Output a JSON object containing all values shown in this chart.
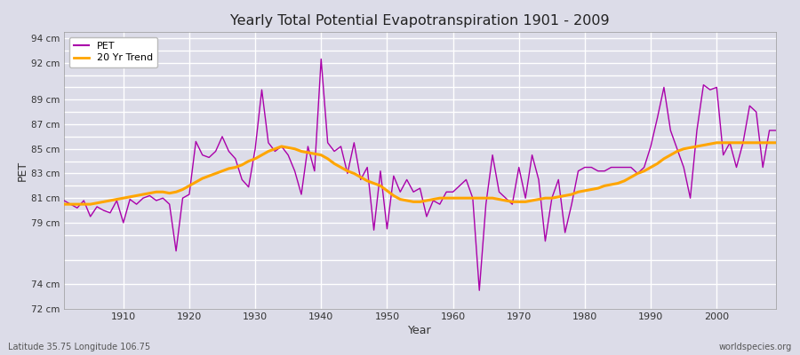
{
  "title": "Yearly Total Potential Evapotranspiration 1901 - 2009",
  "ylabel": "PET",
  "xlabel": "Year",
  "bottom_left_label": "Latitude 35.75 Longitude 106.75",
  "bottom_right_label": "worldspecies.org",
  "pet_color": "#AA00AA",
  "trend_color": "#FFA500",
  "background_color": "#DCDCE8",
  "plot_bg_color": "#DCDCE8",
  "grid_color": "#FFFFFF",
  "ylim": [
    72,
    94.5
  ],
  "xlim": [
    1901,
    2009
  ],
  "years": [
    1901,
    1902,
    1903,
    1904,
    1905,
    1906,
    1907,
    1908,
    1909,
    1910,
    1911,
    1912,
    1913,
    1914,
    1915,
    1916,
    1917,
    1918,
    1919,
    1920,
    1921,
    1922,
    1923,
    1924,
    1925,
    1926,
    1927,
    1928,
    1929,
    1930,
    1931,
    1932,
    1933,
    1934,
    1935,
    1936,
    1937,
    1938,
    1939,
    1940,
    1941,
    1942,
    1943,
    1944,
    1945,
    1946,
    1947,
    1948,
    1949,
    1950,
    1951,
    1952,
    1953,
    1954,
    1955,
    1956,
    1957,
    1958,
    1959,
    1960,
    1961,
    1962,
    1963,
    1964,
    1965,
    1966,
    1967,
    1968,
    1969,
    1970,
    1971,
    1972,
    1973,
    1974,
    1975,
    1976,
    1977,
    1978,
    1979,
    1980,
    1981,
    1982,
    1983,
    1984,
    1985,
    1986,
    1987,
    1988,
    1989,
    1990,
    1991,
    1992,
    1993,
    1994,
    1995,
    1996,
    1997,
    1998,
    1999,
    2000,
    2001,
    2002,
    2003,
    2004,
    2005,
    2006,
    2007,
    2008,
    2009
  ],
  "pet_values": [
    80.8,
    80.5,
    80.2,
    80.8,
    79.5,
    80.3,
    80.0,
    79.8,
    80.8,
    79.0,
    80.9,
    80.5,
    81.0,
    81.2,
    80.8,
    81.0,
    80.5,
    76.7,
    81.0,
    81.3,
    85.6,
    84.5,
    84.3,
    84.8,
    86.0,
    84.8,
    84.2,
    82.5,
    81.9,
    85.0,
    89.8,
    85.5,
    84.8,
    85.2,
    84.5,
    83.2,
    81.3,
    85.2,
    83.2,
    92.3,
    85.5,
    84.8,
    85.2,
    83.0,
    85.5,
    82.5,
    83.5,
    78.4,
    83.2,
    78.5,
    82.8,
    81.5,
    82.5,
    81.5,
    81.8,
    79.5,
    80.8,
    80.5,
    81.5,
    81.5,
    82.0,
    82.5,
    81.0,
    73.5,
    80.5,
    84.5,
    81.5,
    81.0,
    80.5,
    83.5,
    81.0,
    84.5,
    82.5,
    77.5,
    81.0,
    82.5,
    78.2,
    80.5,
    83.2,
    83.5,
    83.5,
    83.2,
    83.2,
    83.5,
    83.5,
    83.5,
    83.5,
    83.0,
    83.5,
    85.2,
    87.5,
    90.0,
    86.5,
    85.0,
    83.5,
    81.0,
    86.5,
    90.2,
    89.8,
    90.0,
    84.5,
    85.5,
    83.5,
    85.5,
    88.5,
    88.0,
    83.5,
    86.5,
    86.5
  ],
  "trend_values": [
    80.5,
    80.5,
    80.5,
    80.5,
    80.5,
    80.6,
    80.7,
    80.8,
    80.9,
    81.0,
    81.1,
    81.2,
    81.3,
    81.4,
    81.5,
    81.5,
    81.4,
    81.5,
    81.7,
    82.0,
    82.3,
    82.6,
    82.8,
    83.0,
    83.2,
    83.4,
    83.5,
    83.7,
    84.0,
    84.2,
    84.5,
    84.8,
    85.0,
    85.2,
    85.1,
    85.0,
    84.8,
    84.7,
    84.6,
    84.5,
    84.2,
    83.8,
    83.5,
    83.2,
    83.0,
    82.7,
    82.4,
    82.2,
    82.0,
    81.6,
    81.2,
    80.9,
    80.8,
    80.7,
    80.7,
    80.8,
    80.9,
    81.0,
    81.0,
    81.0,
    81.0,
    81.0,
    81.0,
    81.0,
    81.0,
    81.0,
    80.9,
    80.8,
    80.7,
    80.7,
    80.7,
    80.8,
    80.9,
    81.0,
    81.0,
    81.1,
    81.2,
    81.3,
    81.5,
    81.6,
    81.7,
    81.8,
    82.0,
    82.1,
    82.2,
    82.4,
    82.7,
    83.0,
    83.2,
    83.5,
    83.8,
    84.2,
    84.5,
    84.8,
    85.0,
    85.1,
    85.2,
    85.3,
    85.4,
    85.5,
    85.5,
    85.5,
    85.5,
    85.5,
    85.5,
    85.5,
    85.5,
    85.5,
    85.5
  ]
}
